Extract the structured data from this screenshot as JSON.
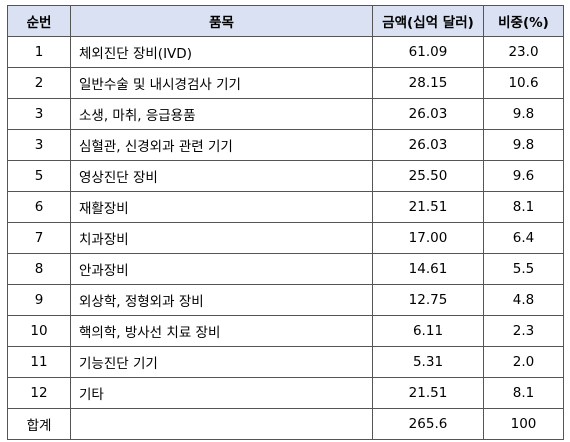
{
  "table": {
    "headers": [
      "순번",
      "품목",
      "금액(십억 달러)",
      "비중(%)"
    ],
    "rows": [
      {
        "rank": "1",
        "item": "체외진단 장비(IVD)",
        "amount": "61.09",
        "share": "23.0"
      },
      {
        "rank": "2",
        "item": "일반수술 및 내시경검사 기기",
        "amount": "28.15",
        "share": "10.6"
      },
      {
        "rank": "3",
        "item": "소생, 마취, 응급용품",
        "amount": "26.03",
        "share": "9.8"
      },
      {
        "rank": "3",
        "item": "심혈관, 신경외과 관련 기기",
        "amount": "26.03",
        "share": "9.8"
      },
      {
        "rank": "5",
        "item": "영상진단 장비",
        "amount": "25.50",
        "share": "9.6"
      },
      {
        "rank": "6",
        "item": "재활장비",
        "amount": "21.51",
        "share": "8.1"
      },
      {
        "rank": "7",
        "item": "치과장비",
        "amount": "17.00",
        "share": "6.4"
      },
      {
        "rank": "8",
        "item": "안과장비",
        "amount": "14.61",
        "share": "5.5"
      },
      {
        "rank": "9",
        "item": "외상학, 정형외과 장비",
        "amount": "12.75",
        "share": "4.8"
      },
      {
        "rank": "10",
        "item": "핵의학, 방사선 치료 장비",
        "amount": "6.11",
        "share": "2.3"
      },
      {
        "rank": "11",
        "item": "기능진단 기기",
        "amount": "5.31",
        "share": "2.0"
      },
      {
        "rank": "12",
        "item": "기타",
        "amount": "21.51",
        "share": "8.1"
      }
    ],
    "total": {
      "label": "합계",
      "item": "",
      "amount": "265.6",
      "share": "100"
    }
  },
  "colors": {
    "header_bg": "#d9e1f2",
    "border": "#555555"
  }
}
